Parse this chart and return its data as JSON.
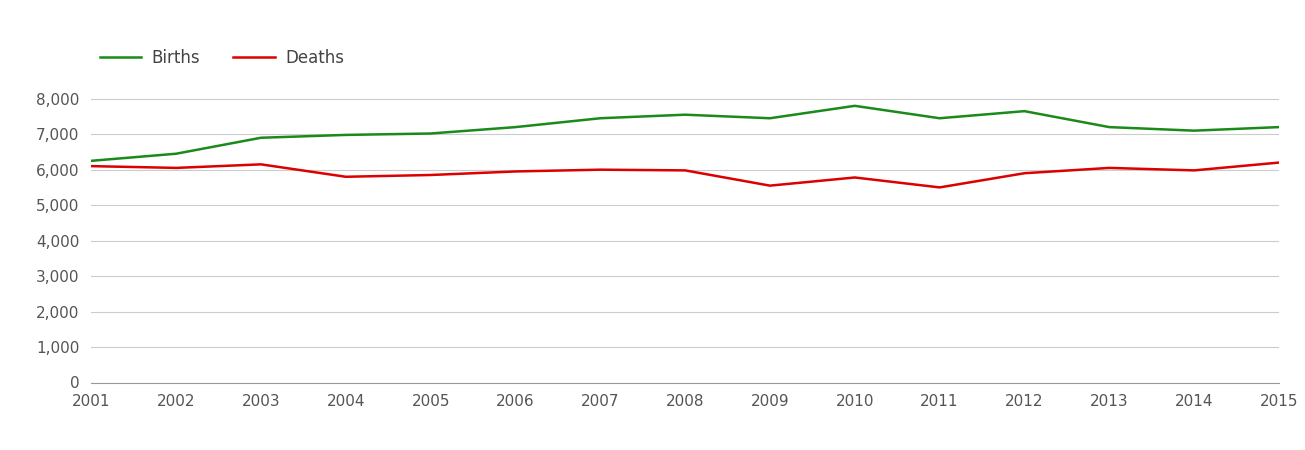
{
  "years": [
    2001,
    2002,
    2003,
    2004,
    2005,
    2006,
    2007,
    2008,
    2009,
    2010,
    2011,
    2012,
    2013,
    2014,
    2015
  ],
  "births": [
    6250,
    6450,
    6900,
    6980,
    7020,
    7200,
    7450,
    7550,
    7450,
    7800,
    7450,
    7650,
    7200,
    7100,
    7200
  ],
  "deaths": [
    6100,
    6050,
    6150,
    5800,
    5850,
    5950,
    6000,
    5980,
    5550,
    5780,
    5500,
    5900,
    6050,
    5980,
    6200
  ],
  "births_color": "#1a8a1a",
  "deaths_color": "#dd0000",
  "legend_text_color": "#444444",
  "line_width": 1.8,
  "ylim": [
    0,
    8500
  ],
  "yticks": [
    0,
    1000,
    2000,
    3000,
    4000,
    5000,
    6000,
    7000,
    8000
  ],
  "legend_labels": [
    "Births",
    "Deaths"
  ],
  "background_color": "#ffffff",
  "grid_color": "#cccccc",
  "tick_label_color": "#555555",
  "tick_label_fontsize": 11,
  "bottom_spine_color": "#999999"
}
